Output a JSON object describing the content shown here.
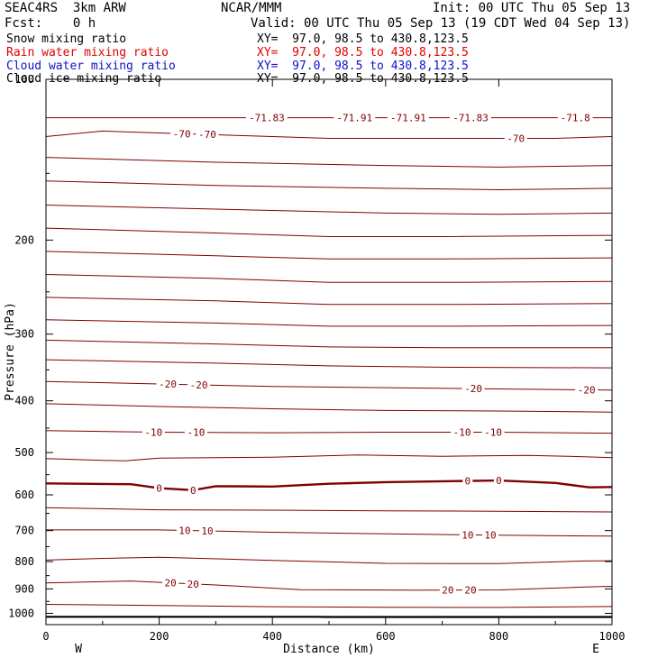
{
  "header": {
    "model": "SEAC4RS  3km ARW",
    "org": "NCAR/MMM",
    "init": "Init: 00 UTC Thu 05 Sep 13",
    "fcst": "Fcst:    0 h",
    "valid": "Valid: 00 UTC Thu 05 Sep 13 (19 CDT Wed 04 Sep 13)"
  },
  "fields": [
    {
      "name": "Snow mixing ratio",
      "xy": "XY=  97.0, 98.5 to 430.8,123.5",
      "color": "#000000"
    },
    {
      "name": "Rain water mixing ratio",
      "xy": "XY=  97.0, 98.5 to 430.8,123.5",
      "color": "#e00000"
    },
    {
      "name": "Cloud water mixing ratio",
      "xy": "XY=  97.0, 98.5 to 430.8,123.5",
      "color": "#1010cc"
    },
    {
      "name": "Cloud ice mixing ratio",
      "xy": "XY=  97.0, 98.5 to 430.8,123.5",
      "color": "#000000"
    }
  ],
  "colors": {
    "contour": "#800000",
    "text": "#000000",
    "terrain": "#000000"
  },
  "chart_data": {
    "type": "line",
    "xlabel": "Distance (km)",
    "ylabel": "Pressure (hPa)",
    "xlim": [
      0,
      1000
    ],
    "ylim": [
      1050,
      100
    ],
    "y_scale": "log",
    "x_ticks": [
      0,
      200,
      400,
      600,
      800,
      1000
    ],
    "y_ticks": [
      200,
      300,
      400,
      500,
      600,
      700,
      800,
      900,
      1000
    ],
    "y_tick_labels_partial": [
      {
        "p": 100,
        "text": "100"
      }
    ],
    "direction_labels": {
      "left": "W",
      "right": "E"
    },
    "surface": [
      {
        "x": 0,
        "p": 1015
      },
      {
        "x": 480,
        "p": 1015
      },
      {
        "x": 490,
        "p": 1016
      },
      {
        "x": 1000,
        "p": 1016
      }
    ],
    "contours": [
      {
        "level": -70,
        "label": "-70",
        "points": [
          [
            0,
            128
          ],
          [
            100,
            125
          ],
          [
            200,
            126
          ],
          [
            300,
            127
          ],
          [
            400,
            128
          ],
          [
            500,
            129
          ],
          [
            600,
            129
          ],
          [
            700,
            129
          ],
          [
            800,
            129
          ],
          [
            900,
            129
          ],
          [
            1000,
            128
          ]
        ],
        "labels": [
          {
            "x": 240,
            "text": "-70"
          },
          {
            "x": 285,
            "text": "-70"
          },
          {
            "x": 830,
            "text": "-70"
          }
        ]
      },
      {
        "level": null,
        "label": "",
        "points": [
          [
            0,
            118
          ],
          [
            200,
            118
          ],
          [
            400,
            118
          ],
          [
            600,
            118
          ],
          [
            800,
            118
          ],
          [
            1000,
            118
          ]
        ],
        "labels": [
          {
            "x": 390,
            "text": "-71.83"
          },
          {
            "x": 545,
            "text": "-71.91"
          },
          {
            "x": 640,
            "text": "-71.91"
          },
          {
            "x": 750,
            "text": "-71.83"
          },
          {
            "x": 935,
            "text": "-71.8"
          }
        ]
      },
      {
        "level": null,
        "label": "",
        "points": [
          [
            0,
            140
          ],
          [
            300,
            143
          ],
          [
            600,
            145
          ],
          [
            800,
            146
          ],
          [
            1000,
            145
          ]
        ],
        "labels": []
      },
      {
        "level": null,
        "label": "",
        "points": [
          [
            0,
            155
          ],
          [
            300,
            158
          ],
          [
            600,
            160
          ],
          [
            800,
            161
          ],
          [
            1000,
            160
          ]
        ],
        "labels": []
      },
      {
        "level": null,
        "label": "",
        "points": [
          [
            0,
            172
          ],
          [
            300,
            175
          ],
          [
            600,
            178
          ],
          [
            800,
            179
          ],
          [
            1000,
            178
          ]
        ],
        "labels": []
      },
      {
        "level": null,
        "label": "",
        "points": [
          [
            0,
            190
          ],
          [
            300,
            194
          ],
          [
            500,
            197
          ],
          [
            700,
            197
          ],
          [
            1000,
            196
          ]
        ],
        "labels": []
      },
      {
        "level": null,
        "label": "",
        "points": [
          [
            0,
            210
          ],
          [
            300,
            214
          ],
          [
            500,
            217
          ],
          [
            700,
            217
          ],
          [
            1000,
            216
          ]
        ],
        "labels": []
      },
      {
        "level": null,
        "label": "",
        "points": [
          [
            0,
            232
          ],
          [
            300,
            236
          ],
          [
            500,
            240
          ],
          [
            700,
            240
          ],
          [
            1000,
            239
          ]
        ],
        "labels": []
      },
      {
        "level": null,
        "label": "",
        "points": [
          [
            0,
            256
          ],
          [
            300,
            260
          ],
          [
            500,
            264
          ],
          [
            700,
            264
          ],
          [
            1000,
            263
          ]
        ],
        "labels": []
      },
      {
        "level": null,
        "label": "",
        "points": [
          [
            0,
            282
          ],
          [
            300,
            286
          ],
          [
            500,
            290
          ],
          [
            700,
            290
          ],
          [
            1000,
            289
          ]
        ],
        "labels": []
      },
      {
        "level": null,
        "label": "",
        "points": [
          [
            0,
            308
          ],
          [
            300,
            313
          ],
          [
            500,
            317
          ],
          [
            700,
            318
          ],
          [
            1000,
            318
          ]
        ],
        "labels": []
      },
      {
        "level": null,
        "label": "",
        "points": [
          [
            0,
            335
          ],
          [
            300,
            340
          ],
          [
            500,
            344
          ],
          [
            700,
            346
          ],
          [
            1000,
            347
          ]
        ],
        "labels": []
      },
      {
        "level": -20,
        "label": "-20",
        "points": [
          [
            0,
            368
          ],
          [
            200,
            372
          ],
          [
            400,
            376
          ],
          [
            600,
            378
          ],
          [
            800,
            380
          ],
          [
            1000,
            382
          ]
        ],
        "labels": [
          {
            "x": 215,
            "text": "-20"
          },
          {
            "x": 270,
            "text": "-20"
          },
          {
            "x": 755,
            "text": "-20"
          },
          {
            "x": 955,
            "text": "-20"
          }
        ]
      },
      {
        "level": null,
        "label": "",
        "points": [
          [
            0,
            405
          ],
          [
            200,
            410
          ],
          [
            400,
            414
          ],
          [
            600,
            417
          ],
          [
            800,
            418
          ],
          [
            1000,
            420
          ]
        ],
        "labels": []
      },
      {
        "level": -10,
        "label": "-10",
        "points": [
          [
            0,
            455
          ],
          [
            200,
            458
          ],
          [
            400,
            459
          ],
          [
            600,
            458
          ],
          [
            800,
            458
          ],
          [
            1000,
            460
          ]
        ],
        "labels": [
          {
            "x": 190,
            "text": "-10"
          },
          {
            "x": 265,
            "text": "-10"
          },
          {
            "x": 735,
            "text": "-10"
          },
          {
            "x": 790,
            "text": "-10"
          }
        ]
      },
      {
        "level": null,
        "label": "",
        "points": [
          [
            0,
            513
          ],
          [
            100,
            517
          ],
          [
            140,
            518
          ],
          [
            200,
            512
          ],
          [
            400,
            510
          ],
          [
            550,
            505
          ],
          [
            700,
            508
          ],
          [
            850,
            506
          ],
          [
            950,
            509
          ],
          [
            1000,
            511
          ]
        ],
        "labels": []
      },
      {
        "level": 0,
        "label": "0",
        "bold": true,
        "points": [
          [
            0,
            571
          ],
          [
            150,
            573
          ],
          [
            200,
            583
          ],
          [
            260,
            588
          ],
          [
            300,
            578
          ],
          [
            400,
            579
          ],
          [
            500,
            572
          ],
          [
            600,
            568
          ],
          [
            800,
            564
          ],
          [
            900,
            570
          ],
          [
            960,
            581
          ],
          [
            1000,
            580
          ]
        ],
        "labels": [
          {
            "x": 200,
            "text": "0"
          },
          {
            "x": 260,
            "text": "0"
          },
          {
            "x": 745,
            "text": "0"
          },
          {
            "x": 800,
            "text": "0"
          }
        ]
      },
      {
        "level": null,
        "label": "",
        "points": [
          [
            0,
            634
          ],
          [
            200,
            640
          ],
          [
            400,
            641
          ],
          [
            600,
            643
          ],
          [
            800,
            644
          ],
          [
            1000,
            646
          ]
        ],
        "labels": []
      },
      {
        "level": 10,
        "label": "10",
        "points": [
          [
            0,
            698
          ],
          [
            200,
            698
          ],
          [
            400,
            705
          ],
          [
            600,
            710
          ],
          [
            800,
            714
          ],
          [
            1000,
            717
          ]
        ],
        "labels": [
          {
            "x": 245,
            "text": "10"
          },
          {
            "x": 285,
            "text": "10"
          },
          {
            "x": 745,
            "text": "10"
          },
          {
            "x": 785,
            "text": "10"
          }
        ]
      },
      {
        "level": null,
        "label": "",
        "points": [
          [
            0,
            795
          ],
          [
            100,
            789
          ],
          [
            200,
            785
          ],
          [
            400,
            796
          ],
          [
            600,
            806
          ],
          [
            800,
            807
          ],
          [
            950,
            798
          ],
          [
            1000,
            797
          ]
        ],
        "labels": []
      },
      {
        "level": 20,
        "label": "20",
        "points": [
          [
            0,
            877
          ],
          [
            150,
            870
          ],
          [
            300,
            885
          ],
          [
            450,
            903
          ],
          [
            650,
            905
          ],
          [
            800,
            904
          ],
          [
            950,
            893
          ],
          [
            1000,
            890
          ]
        ],
        "labels": [
          {
            "x": 220,
            "text": "20"
          },
          {
            "x": 260,
            "text": "20"
          },
          {
            "x": 710,
            "text": "20"
          },
          {
            "x": 750,
            "text": "20"
          }
        ]
      },
      {
        "level": null,
        "label": "",
        "points": [
          [
            0,
            962
          ],
          [
            200,
            967
          ],
          [
            400,
            972
          ],
          [
            600,
            974
          ],
          [
            800,
            975
          ],
          [
            1000,
            971
          ]
        ],
        "labels": []
      }
    ]
  }
}
